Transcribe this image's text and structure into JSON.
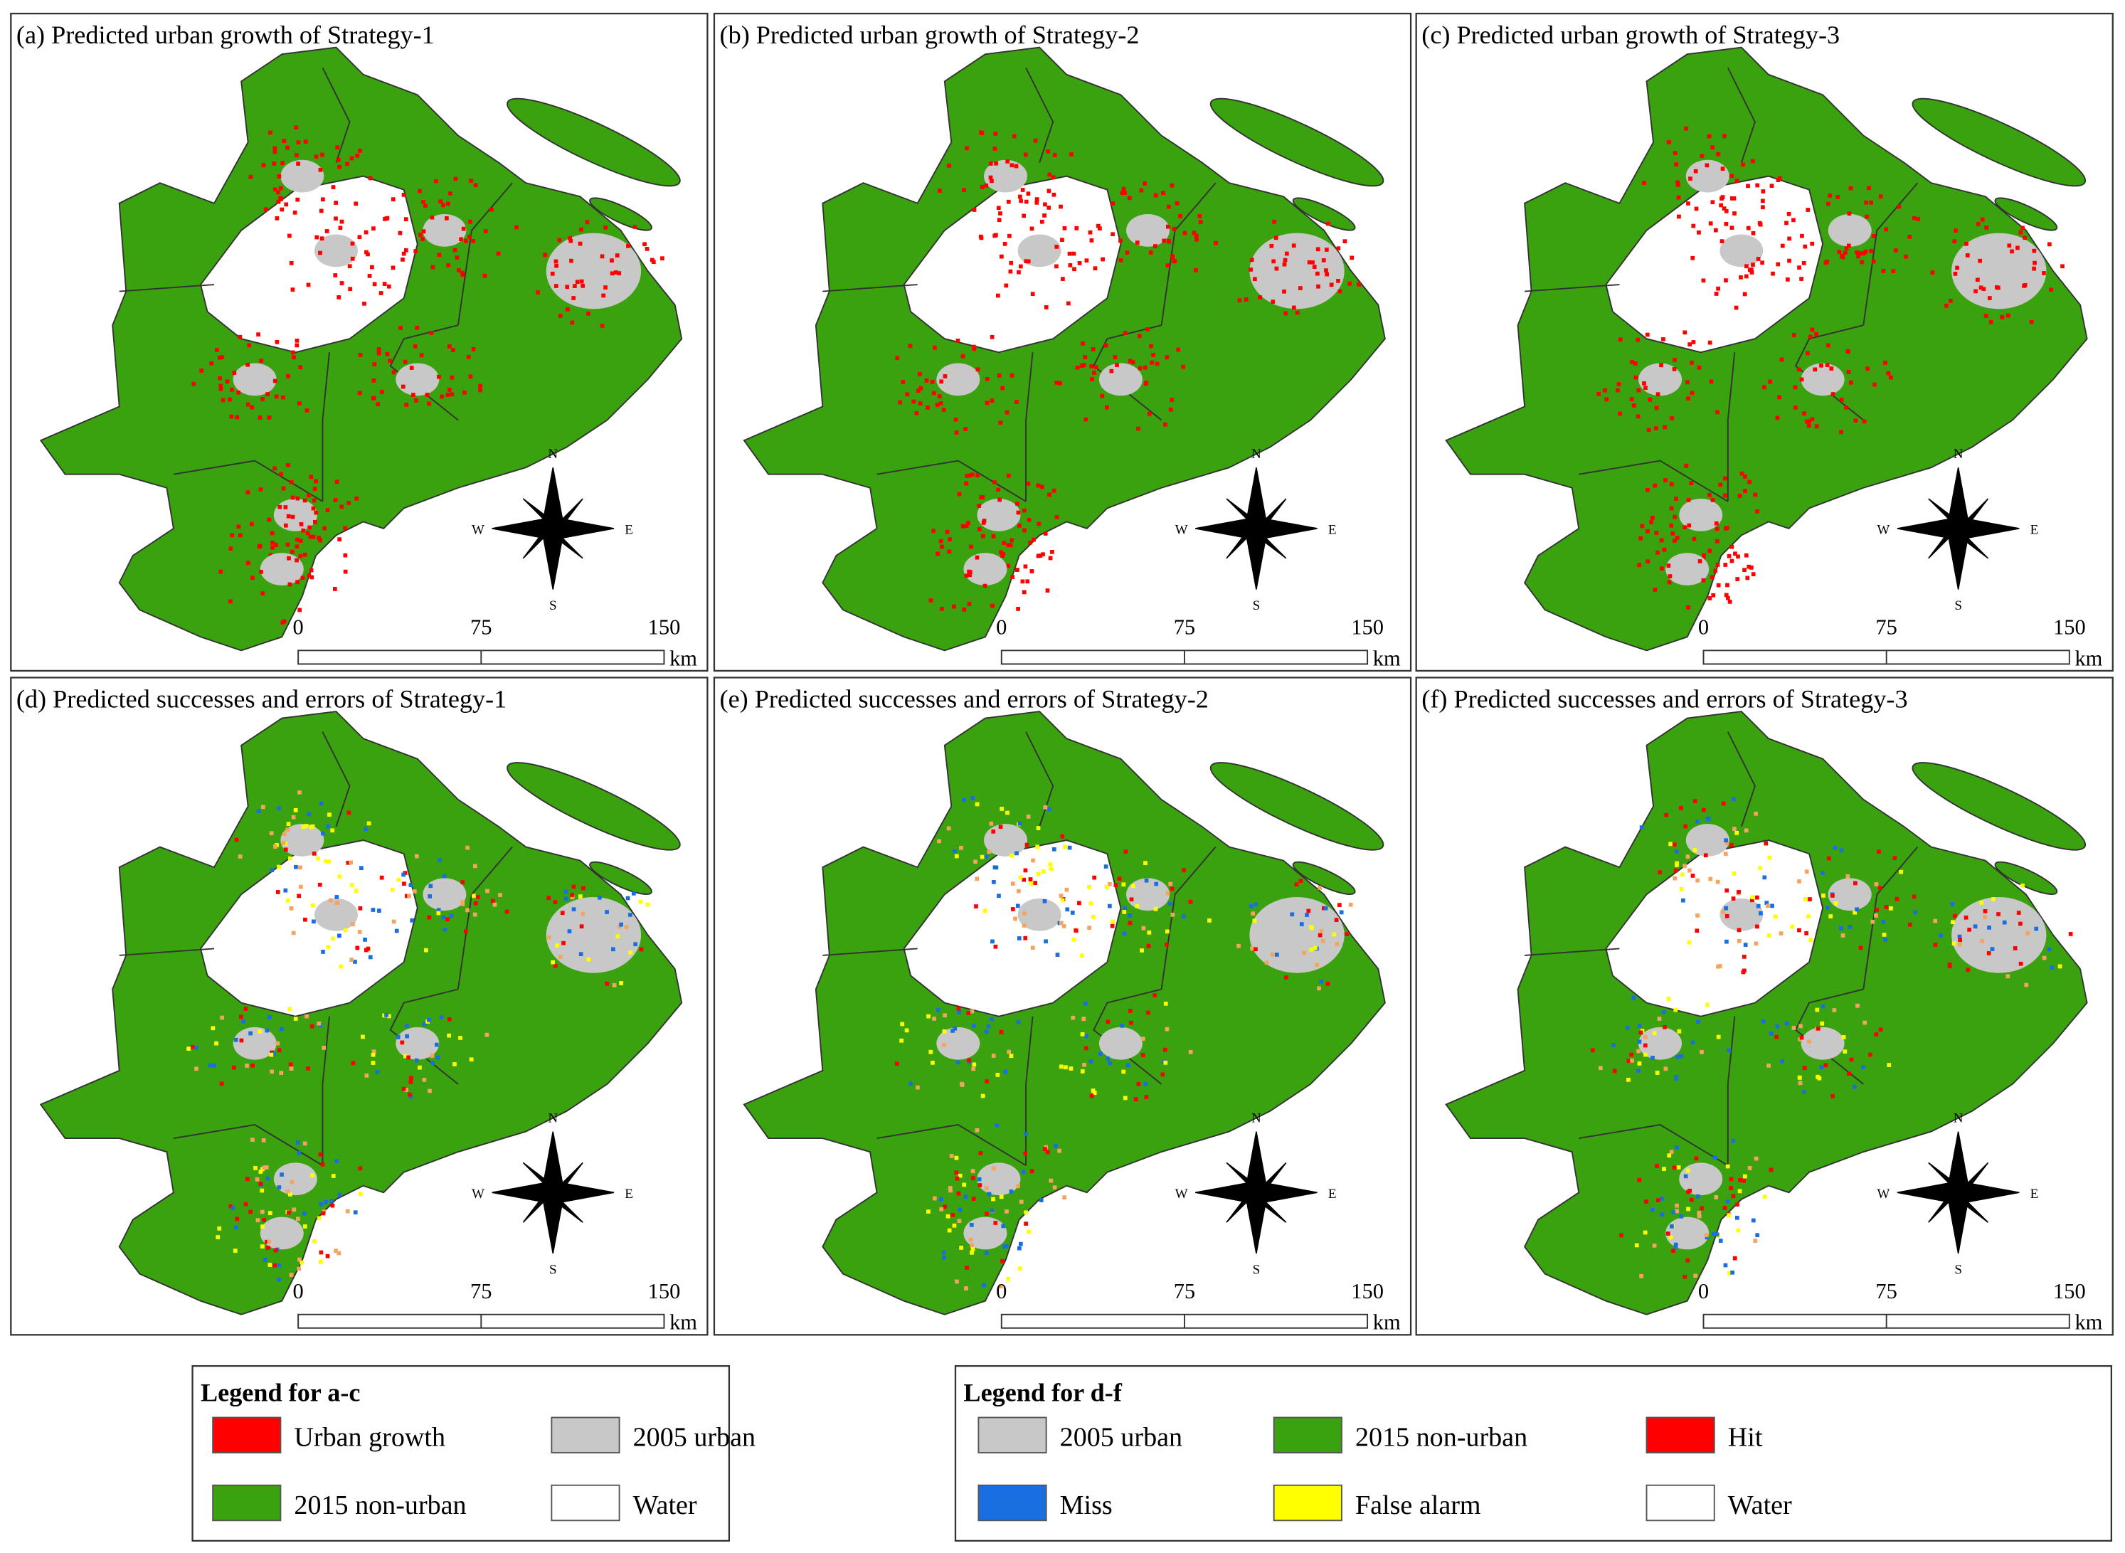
{
  "panels": [
    {
      "title": "(a) Predicted urban growth of Strategy-1",
      "scale": {
        "ticks": [
          "0",
          "75",
          "150"
        ],
        "unit": "km"
      },
      "compass": {
        "n": "N",
        "s": "S",
        "e": "E",
        "w": "W"
      }
    },
    {
      "title": "(b) Predicted urban growth of Strategy-2",
      "scale": {
        "ticks": [
          "0",
          "75",
          "150"
        ],
        "unit": "km"
      },
      "compass": {
        "n": "N",
        "s": "S",
        "e": "E",
        "w": "W"
      }
    },
    {
      "title": "(c) Predicted urban growth of Strategy-3",
      "scale": {
        "ticks": [
          "0",
          "75",
          "150"
        ],
        "unit": "km"
      },
      "compass": {
        "n": "N",
        "s": "S",
        "e": "E",
        "w": "W"
      }
    },
    {
      "title": "(d) Predicted successes and errors of Strategy-1",
      "scale": {
        "ticks": [
          "0",
          "75",
          "150"
        ],
        "unit": "km"
      },
      "compass": {
        "n": "N",
        "s": "S",
        "e": "E",
        "w": "W"
      }
    },
    {
      "title": "(e) Predicted successes and errors of Strategy-2",
      "scale": {
        "ticks": [
          "0",
          "75",
          "150"
        ],
        "unit": "km"
      },
      "compass": {
        "n": "N",
        "s": "S",
        "e": "E",
        "w": "W"
      }
    },
    {
      "title": "(f) Predicted successes and errors of Strategy-3",
      "scale": {
        "ticks": [
          "0",
          "75",
          "150"
        ],
        "unit": "km"
      },
      "compass": {
        "n": "N",
        "s": "S",
        "e": "E",
        "w": "W"
      }
    }
  ],
  "legends": [
    {
      "title": "Legend for a-c",
      "items": [
        {
          "label": "Urban growth",
          "color": "#ff0000"
        },
        {
          "label": "2005 urban",
          "color": "#c8c8c8"
        },
        {
          "label": "2015 non-urban",
          "color": "#3aa20e"
        },
        {
          "label": "Water",
          "color": "#ffffff"
        }
      ]
    },
    {
      "title": "Legend for d-f",
      "items": [
        {
          "label": "2005 urban",
          "color": "#c8c8c8"
        },
        {
          "label": "2015 non-urban",
          "color": "#3aa20e"
        },
        {
          "label": "Hit",
          "color": "#ff0000"
        },
        {
          "label": "Miss",
          "color": "#1a6fe0"
        },
        {
          "label": "False alarm",
          "color": "#ffff00"
        },
        {
          "label": "Water",
          "color": "#ffffff"
        }
      ]
    }
  ]
}
